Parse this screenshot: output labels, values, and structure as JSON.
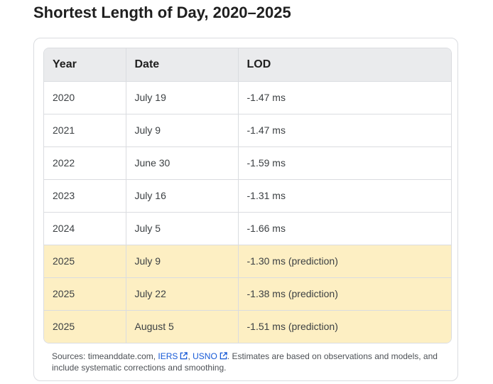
{
  "title": "Shortest Length of Day, 2020–2025",
  "table": {
    "headers": [
      "Year",
      "Date",
      "LOD"
    ],
    "rows": [
      {
        "year": "2020",
        "date": "July 19",
        "lod": "-1.47 ms",
        "prediction": false
      },
      {
        "year": "2021",
        "date": "July 9",
        "lod": "-1.47 ms",
        "prediction": false
      },
      {
        "year": "2022",
        "date": "June 30",
        "lod": "-1.59 ms",
        "prediction": false
      },
      {
        "year": "2023",
        "date": "July 16",
        "lod": "-1.31 ms",
        "prediction": false
      },
      {
        "year": "2024",
        "date": "July 5",
        "lod": "-1.66 ms",
        "prediction": false
      },
      {
        "year": "2025",
        "date": "July 9",
        "lod": "-1.30 ms (prediction)",
        "prediction": true
      },
      {
        "year": "2025",
        "date": "July 22",
        "lod": "-1.38 ms (prediction)",
        "prediction": true
      },
      {
        "year": "2025",
        "date": "August 5",
        "lod": "-1.51 ms (prediction)",
        "prediction": true
      }
    ]
  },
  "sources": {
    "prefix": "Sources: timeanddate.com, ",
    "link1": "IERS",
    "sep": ", ",
    "link2": "USNO",
    "suffix": ". Estimates are based on observations and models, and include systematic corrections and smoothing.",
    "icon": "external-link-icon"
  },
  "colors": {
    "prediction_row": "#fdefc3",
    "header_row": "#eaebed",
    "link": "#1558d6"
  }
}
